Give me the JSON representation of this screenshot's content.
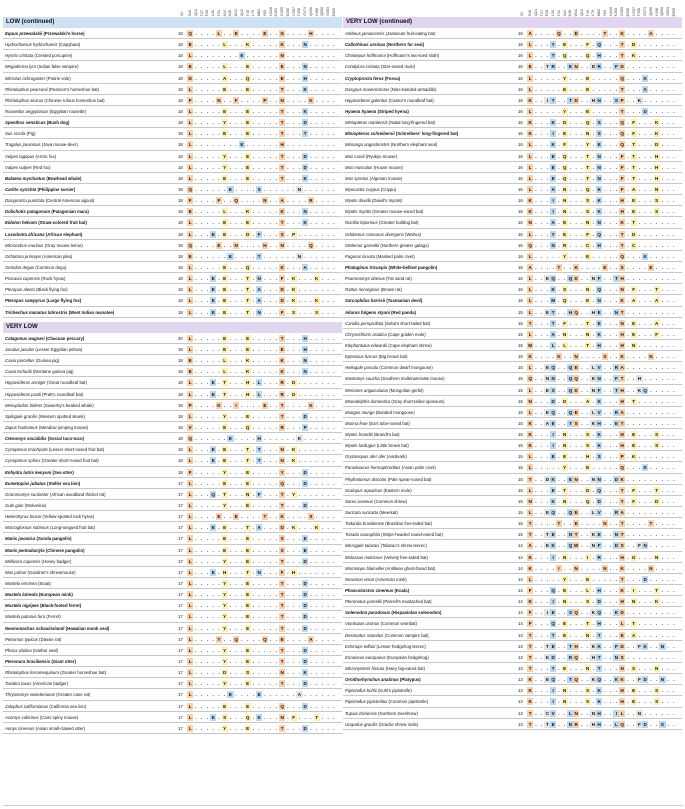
{
  "columns": [
    "ID",
    "S18",
    "Q24",
    "T27",
    "F28",
    "L30",
    "Y31",
    "A34",
    "K38",
    "W41",
    "Q42",
    "T45",
    "L79",
    "M82",
    "Y83",
    "N330",
    "K353",
    "D355",
    "E356",
    "H357",
    "T358",
    "G374",
    "Q496",
    "Y498",
    "Q500",
    "G503",
    "E505"
  ],
  "left": {
    "sections": [
      {
        "title": "LOW (continued)",
        "rows": [
          [
            "Equus przewalskii (Przewalski's horse)",
            "18",
            "Q L E E G H",
            "b"
          ],
          [
            "Hydrochoerus hydrochaeris (Capybara)",
            "18",
            "ELK K N",
            ""
          ],
          [
            "Hystrix cristata (Crested porcupine)",
            "18",
            "L E N",
            ""
          ],
          [
            "Megaderma lyra (Indian false vampire)",
            "18",
            "E L E E N",
            ""
          ],
          [
            "Microtus ochrogaster (Prairie vole)",
            "18",
            "DA Q E H",
            ""
          ],
          [
            "Rhinolophus pearsonii (Pearson's horseshoe bat)",
            "18",
            "L E E T K",
            ""
          ],
          [
            "Rhinolophus sinicus (Chinese rufous horseshoe bat)",
            "18",
            "FN FP N K",
            ""
          ],
          [
            "Rousettus aegyptiacus (Egyptian rousette)",
            "18",
            "L E E T K",
            ""
          ],
          [
            "Speothos venaticus (Bush dog)",
            "18",
            "L Y E T D",
            "b"
          ],
          [
            "Sus scrofa (Pig)",
            "18",
            "L E E T T",
            ""
          ],
          [
            "Tragulus javanicus (Java mouse-deer)",
            "18",
            "L E H",
            ""
          ],
          [
            "Vulpes lagopus (Arctic fox)",
            "18",
            "L Y E T D",
            ""
          ],
          [
            "Vulpes vulpes (Red fox)",
            "18",
            "L Y E T D",
            ""
          ],
          [
            "Balaena mysticetus (Bowhead whale)",
            "18",
            "L E E T K",
            "b"
          ],
          [
            "Carlito syrichta (Philippine tarsier)",
            "18",
            "Q E S N",
            "b"
          ],
          [
            "Dasyprocta punctata (Central American agouti)",
            "18",
            "F FQN A R",
            ""
          ],
          [
            "Dolichotis patagonum (Patagonian mara)",
            "18",
            "ELK K N",
            "b"
          ],
          [
            "Eidolon helvum (Straw-colored fruit bat)",
            "18",
            "L E E T K",
            "b"
          ],
          [
            "Loxodonta africana (African elephant)",
            "18",
            "L E E DFSP",
            "b"
          ],
          [
            "Microcebus murinus (Gray mouse lemur)",
            "18",
            "Q ENH N Q",
            ""
          ],
          [
            "Ochotona princeps (American pika)",
            "18",
            "E E T N",
            ""
          ],
          [
            "Octodon degus (Common degu)",
            "18",
            "L EQK A",
            ""
          ],
          [
            "Procavia capensis (Rock hyrax)",
            "18",
            "L E E T NFKK",
            ""
          ],
          [
            "Pteropus alecto (Black flying fox)",
            "18",
            "L E E T ADK",
            ""
          ],
          [
            "Pteropus vampyrus (Large flying fox)",
            "18",
            "L E E T ADK K",
            "b"
          ],
          [
            "Trichechus manatus latirostris (West Indian manatee)",
            "18",
            "L E E T NFSS",
            "b"
          ]
        ]
      },
      {
        "title": "VERY LOW",
        "rows": [
          [
            "Catagonus wagneri (Chacoan peccary)",
            "20",
            "L E E T H",
            "b"
          ],
          [
            "Jaculus jaculus (Lesser Egyptian jerboa)",
            "18",
            "L E E E H",
            ""
          ],
          [
            "Cavia porcellus (Guinea pig)",
            "18",
            "ELK K N",
            ""
          ],
          [
            "Cavia tschudii (Montane guinea pig)",
            "18",
            "ELK K N",
            ""
          ],
          [
            "Hipposideros armiger (Great roundleaf bat)",
            "18",
            "L E T HL RD",
            ""
          ],
          [
            "Hipposideros pratti (Pratt's roundleaf bat)",
            "18",
            "L E T HL RD",
            ""
          ],
          [
            "Mesoplodon bidens (Sowerby's beaked whale)",
            "18",
            "PKI E T K",
            ""
          ],
          [
            "Spilogale gracilis (Western spotted skunk)",
            "18",
            "L Y E T D",
            ""
          ],
          [
            "Zapus hudsonius (Meadow jumping mouse)",
            "18",
            "VE Q RP",
            ""
          ],
          [
            "Ctenomys sociabilis (Social tuco-tuco)",
            "18",
            "Q E H K",
            "b"
          ],
          [
            "Cynopterus brachyotis (Lesser short-nosed fruit bat)",
            "18",
            "L E E T T NK",
            ""
          ],
          [
            "Cynopterus sphinx (Greater short-nosed fruit bat)",
            "18",
            "L E E T T NK",
            ""
          ],
          [
            "Enhydra lutris kenyoni (Sea otter)",
            "18",
            "FY E Y D",
            "b"
          ],
          [
            "Eumetopias jubatus (Steller sea lion)",
            "17",
            "L E E Q D",
            "b"
          ],
          [
            "Grammomys surdaster (African woodland thicket rat)",
            "17",
            "L Q TNFTY",
            ""
          ],
          [
            "Gulo gulo (Wolverine)",
            "17",
            "L Y E T D",
            ""
          ],
          [
            "Heterohyrax brucei (Yellow-spotted rock hyrax)",
            "17",
            "L E E T KS",
            ""
          ],
          [
            "Macroglossus sobrinus (Long-tongued fruit bat)",
            "17",
            "L E E T ADK K",
            ""
          ],
          [
            "Manis javanica (Sunda pangolin)",
            "17",
            "L E E S E",
            "b"
          ],
          [
            "Manis pentadactyla (Chinese pangolin)",
            "17",
            "L E E S E",
            "b"
          ],
          [
            "Mellivora capensis (Honey badger)",
            "17",
            "L Y E T D",
            ""
          ],
          [
            "Mus pahari (Gairdner's shrewmouse)",
            "17",
            "L E H TNF H",
            ""
          ],
          [
            "Mustela erminea (Stoat)",
            "17",
            "L Y E T D",
            ""
          ],
          [
            "Mustela lutreola (European mink)",
            "17",
            "L Y E T D",
            "b"
          ],
          [
            "Mustela nigripes (Black-footed ferret)",
            "17",
            "L Y E T D",
            "b"
          ],
          [
            "Mustela putorius furo (Ferret)",
            "17",
            "L Y E T D",
            ""
          ],
          [
            "Neomonachus schauinslandi (Hawaiian monk seal)",
            "17",
            "L Y E T D",
            "b"
          ],
          [
            "Petromus typicus (Dassie rat)",
            "17",
            "L TQQ E A",
            ""
          ],
          [
            "Phoca vitulina (Harbor seal)",
            "17",
            "L Y E T D",
            ""
          ],
          [
            "Pteronura brasiliensis (Giant otter)",
            "17",
            "L Y E T D",
            "b"
          ],
          [
            "Rhinolophus ferrumequinum (Greater horseshoe bat)",
            "17",
            "L DS N K",
            ""
          ],
          [
            "Taxidea taxus (American badger)",
            "17",
            "L Y E T D",
            ""
          ],
          [
            "Thryonomys swinderianus (Greater cane rat)",
            "17",
            "L E E A",
            ""
          ],
          [
            "Zalophus californianus (California sea lion)",
            "17",
            "L E E Q D",
            ""
          ],
          [
            "Acomys cahirinus (Cairo spiny mouse)",
            "17",
            "L E SQK NFT",
            ""
          ],
          [
            "Aonyx cinereus (Asian small-clawed otter)",
            "17",
            "L Y E T D",
            ""
          ]
        ]
      }
    ]
  },
  "right": {
    "sections": [
      {
        "title": "VERY LOW (continued)",
        "rows": [
          [
            "Artibeus jamaicensis (Jamaican fruit-eating bat)",
            "16",
            "AQ E T K A",
            ""
          ],
          [
            "Callorhinus ursinus (Northern fur seal)",
            "16",
            "L Y E FQT D",
            "b"
          ],
          [
            "Choloepus hoffmanni (Hoffmann's two-toed sloth)",
            "16",
            "L TQQ H T K",
            ""
          ],
          [
            "Condylura cristata (Star-nosed mole)",
            "16",
            "ETR EN DRFD",
            ""
          ],
          [
            "Cryptoprocta ferox (Fossa)",
            "16",
            "L Y E Q K",
            "b"
          ],
          [
            "Dasypus novemcinctus (Nine-banded armadillo)",
            "16",
            "L E E T A",
            ""
          ],
          [
            "Hipposideros galeritus (Cantor's roundleaf bat)",
            "16",
            "KI TTD HN SPK",
            ""
          ],
          [
            "Hyaena hyaena (Striped hyena)",
            "16",
            "L Y E T D",
            "b"
          ],
          [
            "Miniopterus natalensis (Natal long-fingered bat)",
            "16",
            "KK DQSQ FK",
            ""
          ],
          [
            "Miniopterus schreibersii (Schreibers' long-fingered bat)",
            "16",
            "KI ENSQ FK",
            "b"
          ],
          [
            "Mirounga angustirostris (Northern elephant seal)",
            "16",
            "LK FY E QT D",
            ""
          ],
          [
            "Mus caroli (Ryukyu mouse)",
            "16",
            "L E Q TNFTH",
            ""
          ],
          [
            "Mus musculus (House mouse)",
            "16",
            "L E Q TNFTH",
            ""
          ],
          [
            "Mus spretus (Algerian mouse)",
            "16",
            "L E Q TNFTH",
            ""
          ],
          [
            "Myocastor coypus (Coypu)",
            "16",
            "LA NQK FA N",
            ""
          ],
          [
            "Myotis davidii (David's myotis)",
            "16",
            "KI NSK HE S",
            ""
          ],
          [
            "Myotis myotis (Greater mouse-eared bat)",
            "16",
            "KI NSK HE S",
            ""
          ],
          [
            "Noctilio leporinus (Greater bulldog bat)",
            "16",
            "NA ENNK T",
            ""
          ],
          [
            "Odobenus rosmarus divergens (Walrus)",
            "16",
            "L Y E FQT D",
            ""
          ],
          [
            "Otolemur garnettii (Northern greater galago)",
            "16",
            "Q NR CH T C",
            ""
          ],
          [
            "Pagurus larvata (Masked palm civet)",
            "16",
            "L Y E Q K",
            ""
          ],
          [
            "Phataginus tricuspis (White-bellied pangolin)",
            "16",
            "AT K E S E",
            "b"
          ],
          [
            "Psammomys obesus (Fat sand rat)",
            "16",
            "L E QQK NFTH",
            ""
          ],
          [
            "Rattus norvegicus (Brown rat)",
            "16",
            "L KS N Q NFT",
            ""
          ],
          [
            "Sarcophilus harrisii (Tasmanian devil)",
            "16",
            "LMQ ENKA A",
            "b"
          ],
          [
            "Ailurus fulgens styani (Red panda)",
            "15",
            "L ETH QH E NT",
            "b"
          ],
          [
            "Carollia perspicillata (Seba's short-tailed bat)",
            "15",
            "TT FT ENE A",
            ""
          ],
          [
            "Chrysochloris asiatica (Cape golden mole)",
            "15",
            "LA NNK HE F",
            ""
          ],
          [
            "Elephantulus edwardii (Cape elephant shrew)",
            "15",
            "ML LTH H N",
            ""
          ],
          [
            "Eptesicus fuscus (Big brown bat)",
            "15",
            "KK NSK N",
            ""
          ],
          [
            "Heliogale parvula (Common dwarf mongoose)",
            "15",
            "L EQ QE LV RA",
            ""
          ],
          [
            "Mastomys coucha (Southern multimammate mouse)",
            "15",
            "QN N QQK NFTH",
            ""
          ],
          [
            "Meriones unguiculatus (Mongolian gerbil)",
            "15",
            "L E SQK NFTHKQ",
            ""
          ],
          [
            "Monodelphis domestica (Gray short-tailed opossum)",
            "15",
            "ND DAK H T",
            ""
          ],
          [
            "Mungos mungo (Banded mongoose)",
            "15",
            "L EQ QE LV RA",
            ""
          ],
          [
            "Murina feae (Ea's tube-nosed bat)",
            "15",
            "KA ETSK HE T",
            ""
          ],
          [
            "Myotis brandtii (Brandt's bat)",
            "15",
            "KI NSK HE S",
            ""
          ],
          [
            "Myotis lucifugus (Little brown bat)",
            "15",
            "KI NSK HE S",
            ""
          ],
          [
            "Orycteropus afer afer (Aardvark)",
            "15",
            "L E E H SPK",
            ""
          ],
          [
            "Paradoxurus hermaphroditus (Asian palm civet)",
            "15",
            "L Y E Q K",
            ""
          ],
          [
            "Phyllostomus discolor (Pale spear-nosed bat)",
            "15",
            "TDK ENN ND K",
            ""
          ],
          [
            "Scalopus aquaticus (Eastern mole)",
            "15",
            "L E TDQ T FT",
            ""
          ],
          [
            "Sorex araneus (Common shrew)",
            "15",
            "NK NQD TFD",
            ""
          ],
          [
            "Suricata suricatta (Meerkat)",
            "15",
            "L EQ QE LV RA",
            ""
          ],
          [
            "Tadarida brasiliensis (Brazilian free-tailed bat)",
            "15",
            "TT ENT T",
            ""
          ],
          [
            "Tonatia saurophila (Stripe-headed round-eared bat)",
            "15",
            "TT ENTK EN T",
            ""
          ],
          [
            "Microgale talazaci (Talazac's shrew tenrec)",
            "14",
            "A EKQ W NFDSFN",
            ""
          ],
          [
            "Molossus molossus (Velvety free-tailed bat)",
            "14",
            "KI NIR H GN",
            ""
          ],
          [
            "Mormoops blainvillei (Antillean ghost-faced bat)",
            "14",
            "KI NN KN",
            ""
          ],
          [
            "Neovison vison (American mink)",
            "14",
            "L Y E T D",
            ""
          ],
          [
            "Phascolarctos cinereus (Koala)",
            "14",
            "FQ EL HK IT",
            "b"
          ],
          [
            "Pteronotus parnellii (Parnell's mustached bat)",
            "14",
            "KI NSD HN K",
            ""
          ],
          [
            "Solenodon paradoxus (Hispaniolan solenodon)",
            "14",
            "FI ESQKQ K D",
            "b"
          ],
          [
            "Vombatus ursinus (Common wombat)",
            "14",
            "FQ ET H LT",
            ""
          ],
          [
            "Desmodus rotundus (Common vampire bat)",
            "13",
            "TT ENT E A",
            ""
          ],
          [
            "Echinops telfairi (Lesser hedgehog tenrec)",
            "13",
            "TT ETHK KFDFKN",
            ""
          ],
          [
            "Erinaceus europaeus (European hedgehog)",
            "13",
            "TK DRQ H TN S",
            ""
          ],
          [
            "Micronycteris hirsuta (Hairy big-eared bat)",
            "13",
            "TT ENT NS N",
            ""
          ],
          [
            "Ornithorhynchus anatinus (Platypus)",
            "13",
            "KEQ TQKQ KKFD N",
            "b"
          ],
          [
            "Pipistrellus kuhlii (Kuhl's pipistrelle)",
            "13",
            "KI NSK HE S",
            ""
          ],
          [
            "Pipistrellus pipistrellus (Common pipistrelle)",
            "13",
            "KI NSK HE S",
            ""
          ],
          [
            "Tupaia chinensis (Northern treeshrew)",
            "13",
            "TCV LNN H ILN",
            ""
          ],
          [
            "Uropsilus gracilis (Gracile shrew mole)",
            "13",
            "TT ENRH H LQFDS",
            ""
          ]
        ]
      }
    ]
  },
  "colors": {
    "orange": "#f9cfae",
    "blue": "#bcd8ef",
    "yellow": "#fbf1b6",
    "grey": "#e4e4e4",
    "low_header": "#cfe2f3",
    "very_low_header": "#e2d5f0"
  }
}
